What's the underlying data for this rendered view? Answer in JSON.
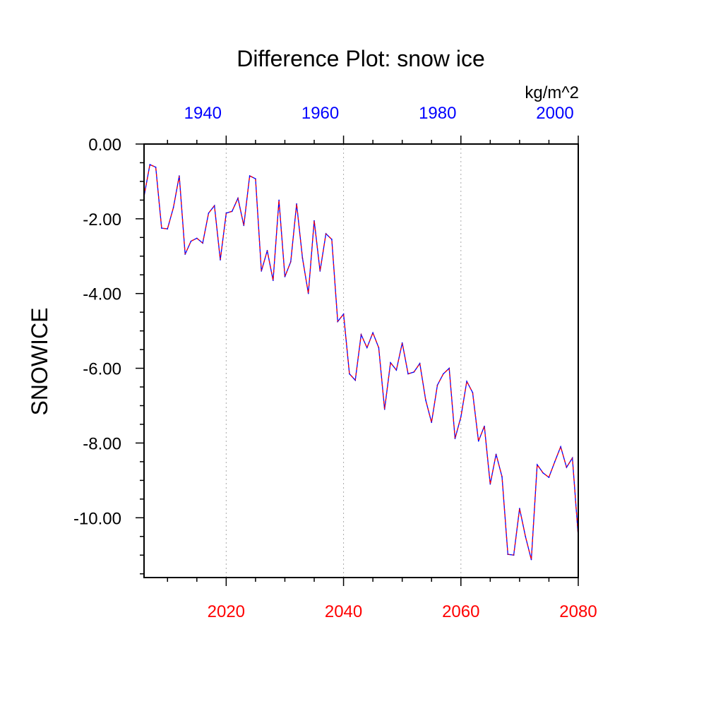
{
  "chart_data": {
    "type": "line",
    "title": "Difference Plot: snow ice",
    "ylabel": "SNOWICE",
    "units": "kg/m^2",
    "xlim": [
      2006,
      2080
    ],
    "ylim": [
      -11.6,
      0
    ],
    "bottom_axis": {
      "ticks": [
        2020,
        2040,
        2060,
        2080
      ],
      "labels": [
        "2020",
        "2040",
        "2060",
        "2080"
      ],
      "color": "#ff0000"
    },
    "top_axis": {
      "ticks": [
        2020,
        2040,
        2060,
        2080
      ],
      "labels": [
        "1940",
        "1960",
        "1980",
        "2000"
      ],
      "color": "#0000ff"
    },
    "y_ticks": [
      0,
      -2,
      -4,
      -6,
      -8,
      -10
    ],
    "y_tick_labels": [
      "0.00",
      "-2.00",
      "-4.00",
      "-6.00",
      "-8.00",
      "-10.00"
    ],
    "gridlines_x": [
      2020,
      2040,
      2060
    ],
    "series": [
      {
        "color_primary": "#ff0000",
        "color_secondary": "#0000ff",
        "x": [
          2006,
          2007,
          2008,
          2009,
          2010,
          2011,
          2012,
          2013,
          2014,
          2015,
          2016,
          2017,
          2018,
          2019,
          2020,
          2021,
          2022,
          2023,
          2024,
          2025,
          2026,
          2027,
          2028,
          2029,
          2030,
          2031,
          2032,
          2033,
          2034,
          2035,
          2036,
          2037,
          2038,
          2039,
          2040,
          2041,
          2042,
          2043,
          2044,
          2045,
          2046,
          2047,
          2048,
          2049,
          2050,
          2051,
          2052,
          2053,
          2054,
          2055,
          2056,
          2057,
          2058,
          2059,
          2060,
          2061,
          2062,
          2063,
          2064,
          2065,
          2066,
          2067,
          2068,
          2069,
          2070,
          2071,
          2072,
          2073,
          2074,
          2075,
          2076,
          2077,
          2078,
          2079,
          2080
        ],
        "values": [
          -1.4,
          -0.55,
          -0.62,
          -2.25,
          -2.27,
          -1.7,
          -0.85,
          -2.95,
          -2.6,
          -2.52,
          -2.65,
          -1.85,
          -1.65,
          -3.1,
          -1.85,
          -1.8,
          -1.45,
          -2.18,
          -0.85,
          -0.93,
          -3.4,
          -2.85,
          -3.65,
          -1.5,
          -3.55,
          -3.15,
          -1.6,
          -3.05,
          -4.0,
          -2.05,
          -3.4,
          -2.4,
          -2.55,
          -4.75,
          -4.55,
          -6.15,
          -6.32,
          -5.1,
          -5.45,
          -5.05,
          -5.45,
          -7.1,
          -5.85,
          -6.05,
          -5.32,
          -6.15,
          -6.1,
          -5.87,
          -6.85,
          -7.45,
          -6.45,
          -6.15,
          -6.0,
          -7.88,
          -7.3,
          -6.35,
          -6.65,
          -7.95,
          -7.55,
          -9.1,
          -8.3,
          -8.9,
          -10.98,
          -11.0,
          -9.75,
          -10.5,
          -11.12,
          -8.58,
          -8.8,
          -8.92,
          -8.5,
          -8.1,
          -8.65,
          -8.4,
          -10.5
        ]
      }
    ],
    "grid": "vertical dotted"
  }
}
